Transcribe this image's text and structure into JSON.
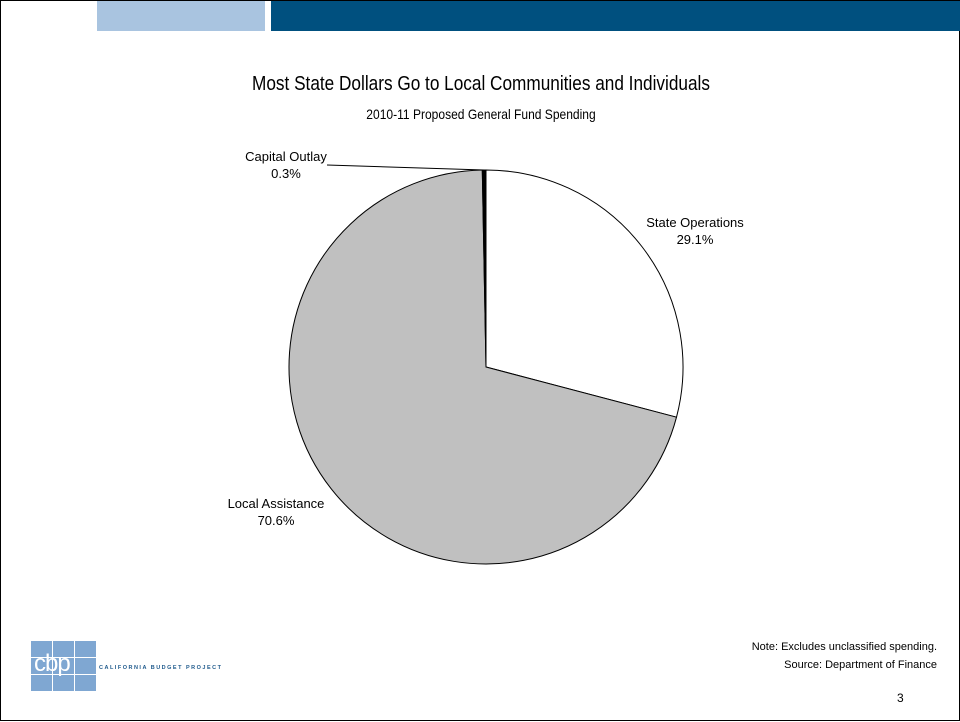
{
  "header": {
    "colors": {
      "accent_light": "#a9c4e0",
      "accent_dark": "#00507f"
    }
  },
  "chart_data": {
    "type": "pie",
    "title": "Most State Dollars Go to Local Communities and Individuals",
    "subtitle": "2010-11 Proposed General Fund Spending",
    "slices": [
      {
        "label": "State Operations",
        "value": 29.1,
        "value_label": "29.1%",
        "color": "#ffffff"
      },
      {
        "label": "Local Assistance",
        "value": 70.6,
        "value_label": "70.6%",
        "color": "#c0c0c0"
      },
      {
        "label": "Capital Outlay",
        "value": 0.3,
        "value_label": "0.3%",
        "color": "#000000"
      }
    ],
    "start": "12 o'clock",
    "direction": "clockwise"
  },
  "footer": {
    "note": "Note: Excludes unclassified spending.",
    "source": "Source: Department of Finance",
    "page_number": "3"
  },
  "logo": {
    "text": "cbp",
    "caption": "CALIFORNIA BUDGET PROJECT",
    "color": "#7fa7d2"
  }
}
